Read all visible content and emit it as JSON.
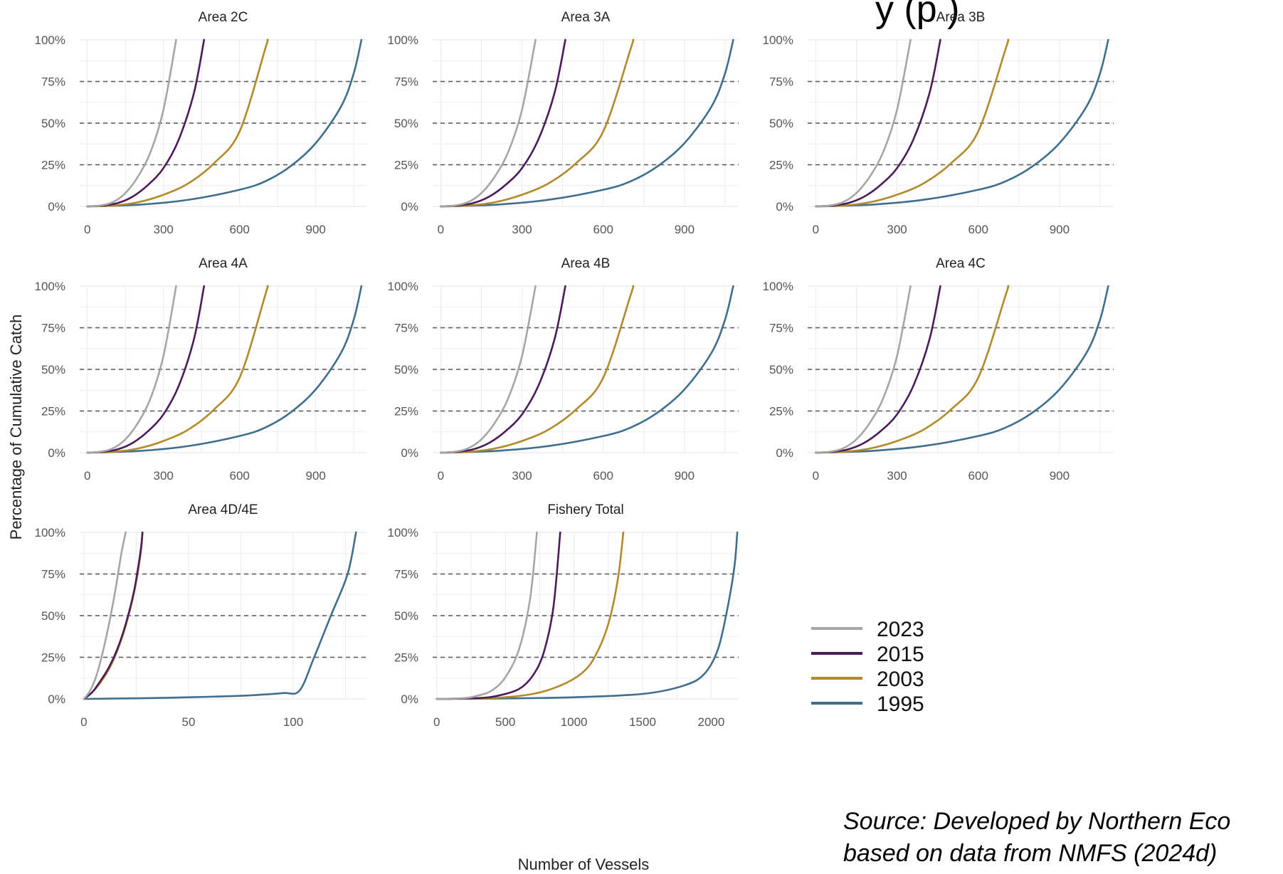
{
  "header": {
    "partial_title": "y  (p  )"
  },
  "y_axis_label": "Percentage of Cumulative Catch",
  "x_axis_label": "Number of Vessels",
  "source": {
    "line1": "Source: Developed by Northern Eco",
    "line2": "based on data from NMFS (2024d)"
  },
  "colors": {
    "2023": "#a6a6a6",
    "2015": "#4b1b5c",
    "2003": "#b38a2a",
    "1995": "#3f6f8f",
    "reference_line": "#555555",
    "grid": "#ebebeb"
  },
  "legend": [
    {
      "label": "2023",
      "color": "#a6a6a6"
    },
    {
      "label": "2015",
      "color": "#4b1b5c"
    },
    {
      "label": "2003",
      "color": "#b38a2a"
    },
    {
      "label": "1995",
      "color": "#3f6f8f"
    }
  ],
  "chart_data": [
    {
      "type": "line",
      "title": "Area 2C",
      "xlim": [
        -30,
        1100
      ],
      "ylim": [
        0,
        100
      ],
      "x_ticks": [
        0,
        300,
        600,
        900
      ],
      "y_ticks": [
        "0%",
        "25%",
        "50%",
        "75%",
        "100%"
      ],
      "reference_lines": [
        25,
        50,
        75
      ],
      "series": [
        {
          "name": "2023",
          "x": [
            0,
            50,
            100,
            150,
            200,
            250,
            300,
            350
          ],
          "y": [
            0,
            0.5,
            2.5,
            8,
            18,
            33,
            58,
            100
          ]
        },
        {
          "name": "2015",
          "x": [
            0,
            60,
            120,
            180,
            240,
            300,
            360,
            420,
            460
          ],
          "y": [
            0,
            0.5,
            2,
            6,
            13,
            23,
            40,
            68,
            100
          ]
        },
        {
          "name": "2003",
          "x": [
            0,
            100,
            200,
            300,
            400,
            500,
            600,
            700,
            710
          ],
          "y": [
            0,
            0.5,
            2.5,
            7,
            14,
            26,
            45,
            94,
            100
          ]
        },
        {
          "name": "1995",
          "x": [
            0,
            200,
            400,
            600,
            700,
            800,
            900,
            1000,
            1050,
            1080
          ],
          "y": [
            0,
            1,
            4,
            10,
            15,
            24,
            38,
            60,
            80,
            100
          ]
        }
      ]
    },
    {
      "type": "line",
      "title": "Area 3A",
      "xlim": [
        -30,
        1100
      ],
      "ylim": [
        0,
        100
      ],
      "x_ticks": [
        0,
        300,
        600,
        900
      ],
      "y_ticks": [
        "0%",
        "25%",
        "50%",
        "75%",
        "100%"
      ],
      "reference_lines": [
        25,
        50,
        75
      ],
      "series": [
        {
          "name": "2023",
          "x": [
            0,
            50,
            100,
            150,
            200,
            250,
            300,
            350
          ],
          "y": [
            0,
            0.5,
            2.5,
            8,
            18,
            33,
            58,
            100
          ]
        },
        {
          "name": "2015",
          "x": [
            0,
            60,
            120,
            180,
            240,
            300,
            360,
            420,
            460
          ],
          "y": [
            0,
            0.5,
            2,
            6,
            13,
            23,
            40,
            68,
            100
          ]
        },
        {
          "name": "2003",
          "x": [
            0,
            100,
            200,
            300,
            400,
            500,
            600,
            700,
            710
          ],
          "y": [
            0,
            0.5,
            2.5,
            7,
            14,
            26,
            45,
            94,
            100
          ]
        },
        {
          "name": "1995",
          "x": [
            0,
            200,
            400,
            600,
            700,
            800,
            900,
            1000,
            1050,
            1080
          ],
          "y": [
            0,
            1,
            4,
            10,
            15,
            24,
            38,
            60,
            80,
            100
          ]
        }
      ]
    },
    {
      "type": "line",
      "title": "Area 3B",
      "xlim": [
        -30,
        1100
      ],
      "ylim": [
        0,
        100
      ],
      "x_ticks": [
        0,
        300,
        600,
        900
      ],
      "y_ticks": [
        "0%",
        "25%",
        "50%",
        "75%",
        "100%"
      ],
      "reference_lines": [
        25,
        50,
        75
      ],
      "series": [
        {
          "name": "2023",
          "x": [
            0,
            50,
            100,
            150,
            200,
            250,
            300,
            350
          ],
          "y": [
            0,
            0.5,
            2.5,
            8,
            18,
            33,
            58,
            100
          ]
        },
        {
          "name": "2015",
          "x": [
            0,
            60,
            120,
            180,
            240,
            300,
            360,
            420,
            460
          ],
          "y": [
            0,
            0.5,
            2,
            6,
            13,
            23,
            40,
            68,
            100
          ]
        },
        {
          "name": "2003",
          "x": [
            0,
            100,
            200,
            300,
            400,
            500,
            600,
            700,
            710
          ],
          "y": [
            0,
            0.5,
            2.5,
            7,
            14,
            26,
            45,
            94,
            100
          ]
        },
        {
          "name": "1995",
          "x": [
            0,
            200,
            400,
            600,
            700,
            800,
            900,
            1000,
            1050,
            1080
          ],
          "y": [
            0,
            1,
            4,
            10,
            15,
            24,
            38,
            60,
            80,
            100
          ]
        }
      ]
    },
    {
      "type": "line",
      "title": "Area 4A",
      "xlim": [
        -30,
        1100
      ],
      "ylim": [
        0,
        100
      ],
      "x_ticks": [
        0,
        300,
        600,
        900
      ],
      "y_ticks": [
        "0%",
        "25%",
        "50%",
        "75%",
        "100%"
      ],
      "reference_lines": [
        25,
        50,
        75
      ],
      "series": [
        {
          "name": "2023",
          "x": [
            0,
            50,
            100,
            150,
            200,
            250,
            300,
            350
          ],
          "y": [
            0,
            0.5,
            2.5,
            8,
            18,
            33,
            58,
            100
          ]
        },
        {
          "name": "2015",
          "x": [
            0,
            60,
            120,
            180,
            240,
            300,
            360,
            420,
            460
          ],
          "y": [
            0,
            0.5,
            2,
            6,
            13,
            23,
            40,
            68,
            100
          ]
        },
        {
          "name": "2003",
          "x": [
            0,
            100,
            200,
            300,
            400,
            500,
            600,
            700,
            710
          ],
          "y": [
            0,
            0.5,
            2.5,
            7,
            14,
            26,
            45,
            94,
            100
          ]
        },
        {
          "name": "1995",
          "x": [
            0,
            200,
            400,
            600,
            700,
            800,
            900,
            1000,
            1050,
            1080
          ],
          "y": [
            0,
            1,
            4,
            10,
            15,
            24,
            38,
            60,
            80,
            100
          ]
        }
      ]
    },
    {
      "type": "line",
      "title": "Area 4B",
      "xlim": [
        -30,
        1100
      ],
      "ylim": [
        0,
        100
      ],
      "x_ticks": [
        0,
        300,
        600,
        900
      ],
      "y_ticks": [
        "0%",
        "25%",
        "50%",
        "75%",
        "100%"
      ],
      "reference_lines": [
        25,
        50,
        75
      ],
      "series": [
        {
          "name": "2023",
          "x": [
            0,
            50,
            100,
            150,
            200,
            250,
            300,
            350
          ],
          "y": [
            0,
            0.5,
            2.5,
            8,
            18,
            33,
            58,
            100
          ]
        },
        {
          "name": "2015",
          "x": [
            0,
            60,
            120,
            180,
            240,
            300,
            360,
            420,
            460
          ],
          "y": [
            0,
            0.5,
            2,
            6,
            13,
            23,
            40,
            68,
            100
          ]
        },
        {
          "name": "2003",
          "x": [
            0,
            100,
            200,
            300,
            400,
            500,
            600,
            700,
            710
          ],
          "y": [
            0,
            0.5,
            2.5,
            7,
            14,
            26,
            45,
            94,
            100
          ]
        },
        {
          "name": "1995",
          "x": [
            0,
            200,
            400,
            600,
            700,
            800,
            900,
            1000,
            1050,
            1080
          ],
          "y": [
            0,
            1,
            4,
            10,
            15,
            24,
            38,
            60,
            80,
            100
          ]
        }
      ]
    },
    {
      "type": "line",
      "title": "Area 4C",
      "xlim": [
        -30,
        1100
      ],
      "ylim": [
        0,
        100
      ],
      "x_ticks": [
        0,
        300,
        600,
        900
      ],
      "y_ticks": [
        "0%",
        "25%",
        "50%",
        "75%",
        "100%"
      ],
      "reference_lines": [
        25,
        50,
        75
      ],
      "series": [
        {
          "name": "2023",
          "x": [
            0,
            50,
            100,
            150,
            200,
            250,
            300,
            350
          ],
          "y": [
            0,
            0.5,
            2.5,
            8,
            18,
            33,
            58,
            100
          ]
        },
        {
          "name": "2015",
          "x": [
            0,
            60,
            120,
            180,
            240,
            300,
            360,
            420,
            460
          ],
          "y": [
            0,
            0.5,
            2,
            6,
            13,
            23,
            40,
            68,
            100
          ]
        },
        {
          "name": "2003",
          "x": [
            0,
            100,
            200,
            300,
            400,
            500,
            600,
            700,
            710
          ],
          "y": [
            0,
            0.5,
            2.5,
            7,
            14,
            26,
            45,
            94,
            100
          ]
        },
        {
          "name": "1995",
          "x": [
            0,
            200,
            400,
            600,
            700,
            800,
            900,
            1000,
            1050,
            1080
          ],
          "y": [
            0,
            1,
            4,
            10,
            15,
            24,
            38,
            60,
            80,
            100
          ]
        }
      ]
    },
    {
      "type": "line",
      "title": "Area 4D/4E",
      "xlim": [
        -2,
        135
      ],
      "ylim": [
        0,
        100
      ],
      "x_ticks": [
        0,
        50,
        100
      ],
      "y_ticks": [
        "0%",
        "25%",
        "50%",
        "75%",
        "100%"
      ],
      "reference_lines": [
        25,
        50,
        75
      ],
      "series": [
        {
          "name": "2023",
          "x": [
            0,
            3,
            6,
            9,
            12,
            15,
            18,
            20
          ],
          "y": [
            0,
            5,
            14,
            28,
            45,
            65,
            88,
            100
          ]
        },
        {
          "name": "2015",
          "x": [
            0,
            4,
            8,
            12,
            16,
            20,
            24,
            27,
            28
          ],
          "y": [
            0,
            4,
            11,
            19,
            30,
            45,
            65,
            88,
            100
          ]
        },
        {
          "name": "2003",
          "x": [
            0,
            4,
            8,
            12,
            16,
            20,
            24,
            27,
            28
          ],
          "y": [
            0,
            4,
            10,
            18,
            29,
            44,
            64,
            86,
            100
          ]
        },
        {
          "name": "1995",
          "x": [
            0,
            20,
            40,
            60,
            80,
            95,
            103,
            110,
            118,
            126,
            130
          ],
          "y": [
            0,
            0.3,
            0.7,
            1.3,
            2.2,
            3.5,
            5,
            25,
            50,
            75,
            100
          ]
        }
      ]
    },
    {
      "type": "line",
      "title": "Fishery Total",
      "xlim": [
        -30,
        2200
      ],
      "ylim": [
        0,
        100
      ],
      "x_ticks": [
        0,
        500,
        1000,
        1500,
        2000
      ],
      "y_ticks": [
        "0%",
        "25%",
        "50%",
        "75%",
        "100%"
      ],
      "reference_lines": [
        25,
        50,
        75
      ],
      "series": [
        {
          "name": "2023",
          "x": [
            0,
            200,
            300,
            400,
            500,
            600,
            680,
            730
          ],
          "y": [
            0,
            0.5,
            2,
            5,
            13,
            30,
            60,
            100
          ]
        },
        {
          "name": "2015",
          "x": [
            0,
            300,
            450,
            600,
            700,
            780,
            850,
            900
          ],
          "y": [
            0,
            0.5,
            2,
            6,
            14,
            28,
            55,
            100
          ]
        },
        {
          "name": "2003",
          "x": [
            0,
            400,
            700,
            900,
            1050,
            1150,
            1250,
            1320,
            1360
          ],
          "y": [
            0,
            0.5,
            3,
            8,
            15,
            25,
            45,
            72,
            100
          ]
        },
        {
          "name": "1995",
          "x": [
            0,
            500,
            1000,
            1500,
            1800,
            1950,
            2050,
            2120,
            2170,
            2190
          ],
          "y": [
            0,
            0.3,
            1,
            3,
            8,
            15,
            30,
            55,
            80,
            100
          ]
        }
      ]
    }
  ]
}
